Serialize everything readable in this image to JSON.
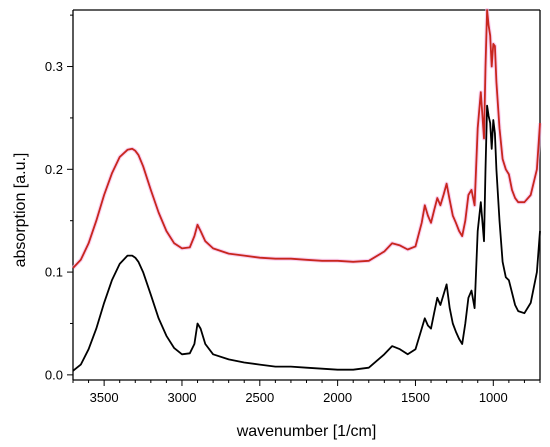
{
  "chart_data": {
    "type": "line",
    "title": "",
    "xlabel": "wavenumber [1/cm]",
    "ylabel": "absorption [a.u.]",
    "xlim": [
      3700,
      700
    ],
    "ylim": [
      -0.005,
      0.355
    ],
    "x_reversed": true,
    "x_ticks": [
      3500,
      3000,
      2500,
      2000,
      1500,
      1000
    ],
    "y_ticks": [
      0.0,
      0.1,
      0.2,
      0.3
    ],
    "y_tick_labels": [
      "0.0",
      "0.1",
      "0.2",
      "0.3"
    ],
    "grid": false,
    "legend": "none",
    "series": [
      {
        "color": "#c8261e",
        "halo": true,
        "x": [
          3700,
          3650,
          3600,
          3550,
          3500,
          3450,
          3400,
          3350,
          3320,
          3300,
          3280,
          3250,
          3200,
          3150,
          3100,
          3050,
          3000,
          2950,
          2920,
          2900,
          2880,
          2850,
          2800,
          2700,
          2600,
          2500,
          2400,
          2300,
          2200,
          2100,
          2000,
          1900,
          1800,
          1700,
          1650,
          1600,
          1550,
          1500,
          1460,
          1440,
          1420,
          1400,
          1380,
          1360,
          1340,
          1320,
          1300,
          1280,
          1260,
          1240,
          1220,
          1200,
          1180,
          1160,
          1140,
          1120,
          1100,
          1080,
          1060,
          1050,
          1040,
          1030,
          1020,
          1010,
          1000,
          990,
          980,
          960,
          940,
          920,
          900,
          880,
          860,
          840,
          800,
          760,
          720,
          700
        ],
        "values": [
          0.104,
          0.112,
          0.128,
          0.15,
          0.175,
          0.196,
          0.212,
          0.219,
          0.22,
          0.218,
          0.214,
          0.203,
          0.18,
          0.158,
          0.14,
          0.128,
          0.123,
          0.124,
          0.135,
          0.146,
          0.14,
          0.13,
          0.123,
          0.118,
          0.116,
          0.114,
          0.113,
          0.113,
          0.112,
          0.111,
          0.111,
          0.11,
          0.111,
          0.12,
          0.128,
          0.126,
          0.122,
          0.125,
          0.148,
          0.165,
          0.155,
          0.148,
          0.16,
          0.172,
          0.165,
          0.175,
          0.186,
          0.17,
          0.155,
          0.148,
          0.14,
          0.135,
          0.15,
          0.175,
          0.18,
          0.165,
          0.24,
          0.275,
          0.23,
          0.3,
          0.355,
          0.34,
          0.33,
          0.3,
          0.322,
          0.32,
          0.285,
          0.24,
          0.21,
          0.2,
          0.195,
          0.18,
          0.172,
          0.168,
          0.168,
          0.175,
          0.2,
          0.245
        ]
      },
      {
        "color": "#000000",
        "halo": false,
        "x": [
          3700,
          3650,
          3600,
          3550,
          3500,
          3450,
          3400,
          3350,
          3320,
          3300,
          3280,
          3250,
          3200,
          3150,
          3100,
          3050,
          3000,
          2950,
          2920,
          2900,
          2880,
          2850,
          2800,
          2700,
          2600,
          2500,
          2400,
          2300,
          2200,
          2100,
          2000,
          1900,
          1800,
          1700,
          1650,
          1600,
          1550,
          1500,
          1460,
          1440,
          1420,
          1400,
          1380,
          1360,
          1340,
          1320,
          1300,
          1280,
          1260,
          1240,
          1220,
          1200,
          1180,
          1160,
          1140,
          1120,
          1100,
          1080,
          1060,
          1050,
          1040,
          1030,
          1020,
          1010,
          1000,
          990,
          980,
          960,
          940,
          920,
          900,
          880,
          860,
          840,
          800,
          760,
          720,
          700
        ],
        "values": [
          0.004,
          0.01,
          0.025,
          0.045,
          0.07,
          0.092,
          0.108,
          0.116,
          0.116,
          0.114,
          0.11,
          0.1,
          0.078,
          0.055,
          0.038,
          0.026,
          0.02,
          0.021,
          0.03,
          0.05,
          0.045,
          0.03,
          0.02,
          0.015,
          0.012,
          0.01,
          0.008,
          0.008,
          0.007,
          0.006,
          0.005,
          0.005,
          0.007,
          0.02,
          0.028,
          0.025,
          0.02,
          0.025,
          0.045,
          0.055,
          0.048,
          0.045,
          0.06,
          0.075,
          0.068,
          0.078,
          0.088,
          0.065,
          0.05,
          0.042,
          0.035,
          0.03,
          0.05,
          0.075,
          0.082,
          0.065,
          0.14,
          0.168,
          0.13,
          0.2,
          0.262,
          0.252,
          0.245,
          0.22,
          0.248,
          0.235,
          0.2,
          0.15,
          0.11,
          0.095,
          0.092,
          0.08,
          0.068,
          0.062,
          0.06,
          0.07,
          0.1,
          0.14
        ]
      }
    ]
  }
}
